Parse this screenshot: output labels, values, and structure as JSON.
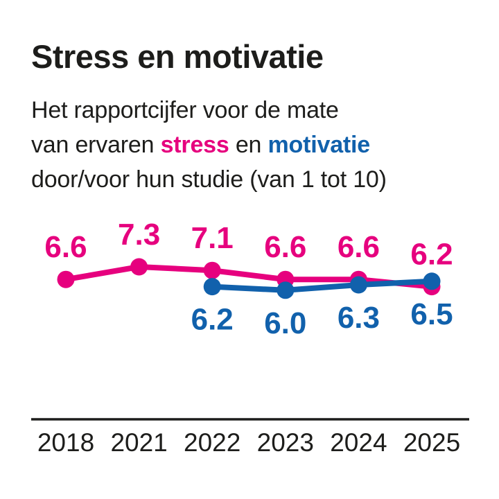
{
  "header": {
    "title": "Stress en motivatie",
    "subtitle": {
      "line1": "Het rapportcijfer voor de mate",
      "line2_prefix": "van ervaren ",
      "stress_word": "stress",
      "line2_mid": " en ",
      "motivatie_word": "motivatie",
      "line3": "door/voor hun studie (van 1 tot 10)"
    }
  },
  "colors": {
    "stress": "#e6007e",
    "motivatie": "#1161ac",
    "text": "#1d1d1b",
    "background": "#ffffff"
  },
  "chart_data": {
    "type": "line",
    "title": "Stress en motivatie",
    "categories": [
      "2018",
      "2021",
      "2022",
      "2023",
      "2024",
      "2025"
    ],
    "series": [
      {
        "name": "stress",
        "color": "#e6007e",
        "values": [
          6.6,
          7.3,
          7.1,
          6.6,
          6.6,
          6.2
        ],
        "label_position": "above"
      },
      {
        "name": "motivatie",
        "color": "#1161ac",
        "values": [
          null,
          null,
          6.2,
          6.0,
          6.3,
          6.5
        ],
        "label_position": "below"
      }
    ],
    "xlabel": "",
    "ylabel": "",
    "ylim": [
      1,
      10
    ],
    "value_scale_note": "van 1 tot 10",
    "grid": false,
    "legend": "none",
    "y_axis_shown": false,
    "data_labels": true,
    "data_label_format": "one-decimal"
  }
}
